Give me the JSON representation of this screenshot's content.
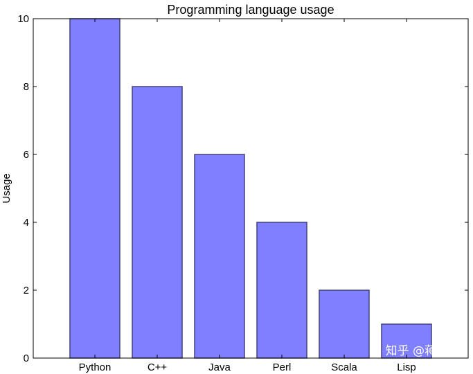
{
  "chart_data": {
    "type": "bar",
    "title": "Programming language usage",
    "xlabel": "",
    "ylabel": "Usage",
    "categories": [
      "Python",
      "C++",
      "Java",
      "Perl",
      "Scala",
      "Lisp"
    ],
    "values": [
      10,
      8,
      6,
      4,
      2,
      1
    ],
    "ylim": [
      0,
      10
    ],
    "yticks": [
      0,
      2,
      4,
      6,
      8,
      10
    ],
    "grid": false,
    "bar_color": "#7f7fff",
    "bar_edge_color": "#40407f"
  },
  "watermark": "知乎 @蒋红旭"
}
